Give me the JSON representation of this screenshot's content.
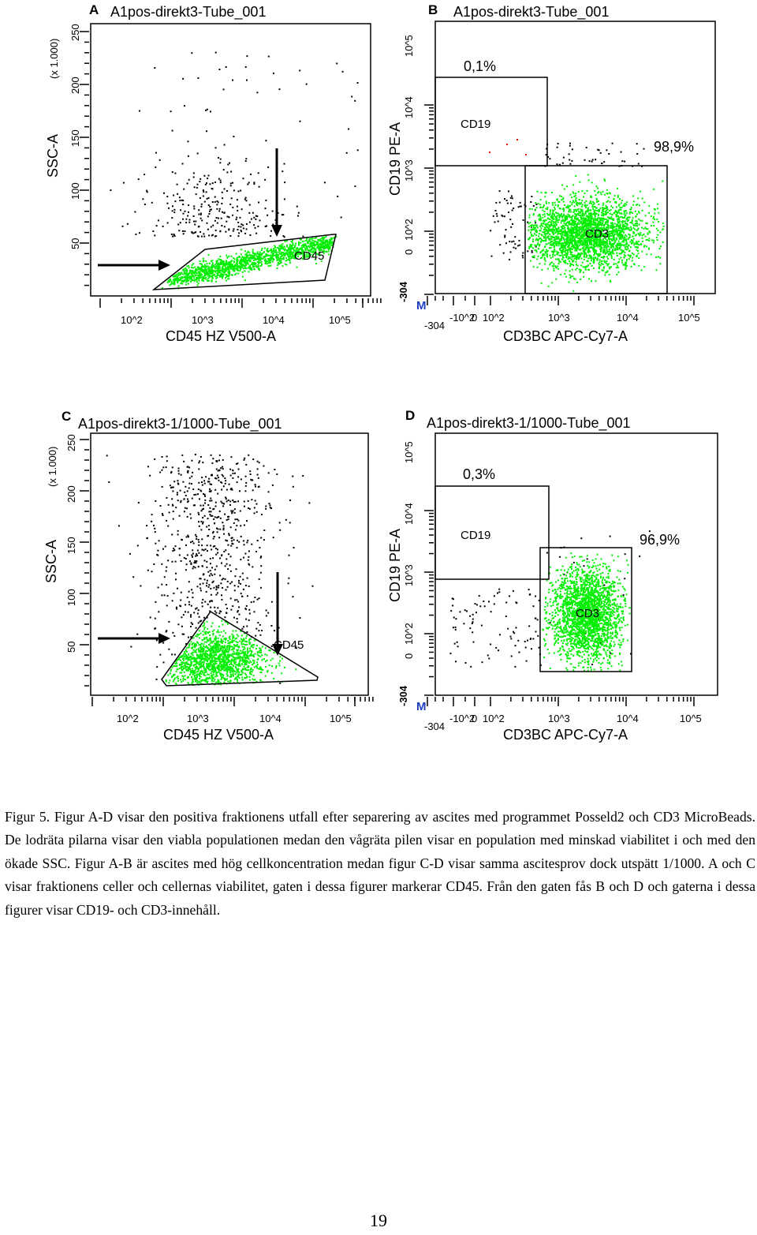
{
  "figure": {
    "panels": [
      {
        "letter": "A",
        "title": "A1pos-direkt3-Tube_001",
        "ylabel": "SSC-A",
        "yunit": "(x 1.000)",
        "xlabel": "CD45 HZ V500-A",
        "yticks": [
          "250",
          "200",
          "150",
          "100",
          "50"
        ],
        "xticks": [
          "10^2",
          "10^3",
          "10^4",
          "10^5"
        ],
        "gate_label": "CD45"
      },
      {
        "letter": "B",
        "title": "A1pos-direkt3-Tube_001",
        "ylabel": "CD19 PE-A",
        "xlabel": "CD3BC APC-Cy7-A",
        "yticks": [
          "10^5",
          "10^4",
          "10^3",
          "10^2",
          "0",
          "-304"
        ],
        "xticks": [
          "-304",
          "-10^2",
          "0",
          "10^2",
          "10^3",
          "10^4",
          "10^5"
        ],
        "gate_cd19_label": "CD19",
        "gate_cd3_label": "CD3",
        "cd19_percent": "0,1%",
        "cd3_percent": "98,9%",
        "marker": "M"
      },
      {
        "letter": "C",
        "title": "A1pos-direkt3-1/1000-Tube_001",
        "ylabel": "SSC-A",
        "yunit": "(x 1.000)",
        "xlabel": "CD45 HZ V500-A",
        "yticks": [
          "250",
          "200",
          "150",
          "100",
          "50"
        ],
        "xticks": [
          "10^2",
          "10^3",
          "10^4",
          "10^5"
        ],
        "gate_label": "CD45"
      },
      {
        "letter": "D",
        "title": "A1pos-direkt3-1/1000-Tube_001",
        "ylabel": "CD19 PE-A",
        "xlabel": "CD3BC APC-Cy7-A",
        "yticks": [
          "10^5",
          "10^4",
          "10^3",
          "10^2",
          "0",
          "-304"
        ],
        "xticks": [
          "-304",
          "-10^2",
          "0",
          "10^2",
          "10^3",
          "10^4",
          "10^5"
        ],
        "gate_cd19_label": "CD19",
        "gate_cd3_label": "CD3",
        "cd19_percent": "0,3%",
        "cd3_percent": "96,9%",
        "marker": "M"
      }
    ]
  },
  "caption": "Figur 5. Figur A-D visar den positiva fraktionens utfall efter separering av ascites med programmet Posseld2 och CD3 MicroBeads. De lodräta pilarna visar den viabla populationen medan den vågräta pilen visar en population med minskad viabilitet i och med den ökade SSC. Figur A-B är ascites med hög cellkoncentration medan figur C-D visar samma ascitesprov dock utspätt 1/1000. A och C visar fraktionens celler och cellernas viabilitet, gaten i dessa figurer markerar CD45. Från den gaten fås B och D och gaterna i dessa figurer visar CD19- och CD3-innehåll.",
  "page_number": "19",
  "colors": {
    "gated_events": "#00ee00",
    "ungated_events": "#000000",
    "red_events": "#dd0000"
  }
}
